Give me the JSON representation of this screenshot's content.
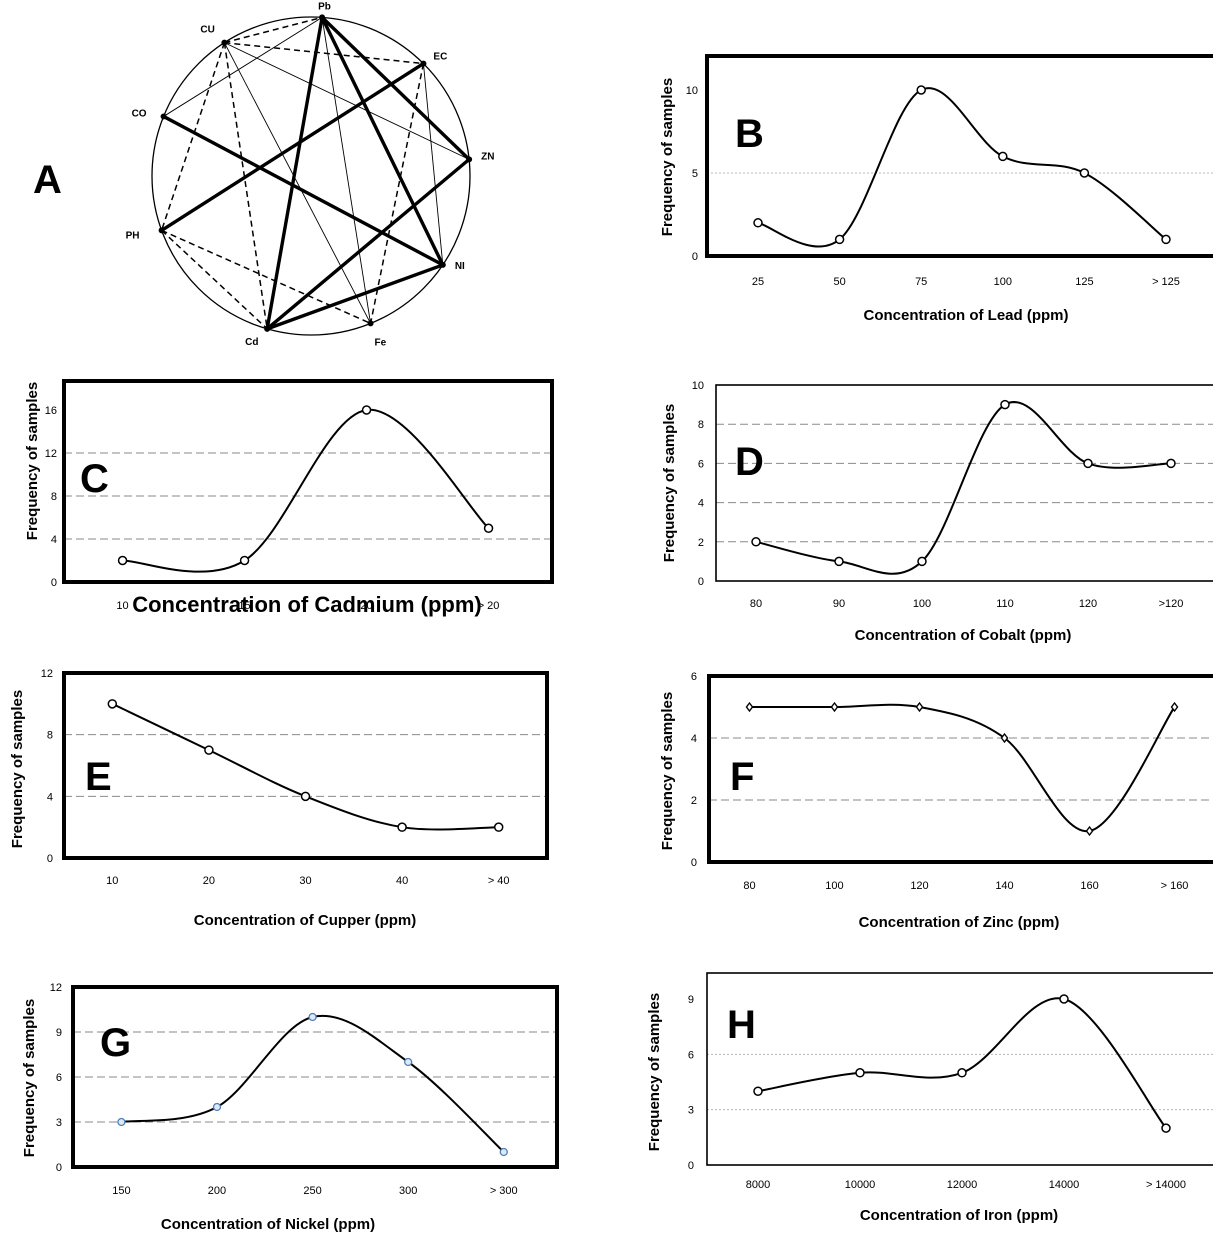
{
  "diagram": {
    "label": "A",
    "nodes": [
      "Pb",
      "EC",
      "ZN",
      "NI",
      "Fe",
      "Cd",
      "PH",
      "CO",
      "CU"
    ],
    "edges": [
      {
        "from": "CO",
        "to": "NI",
        "style": "thick"
      },
      {
        "from": "PH",
        "to": "EC",
        "style": "thick"
      },
      {
        "from": "Cd",
        "to": "ZN",
        "style": "thick"
      },
      {
        "from": "Cd",
        "to": "Pb",
        "style": "thick"
      },
      {
        "from": "Pb",
        "to": "NI",
        "style": "thick"
      },
      {
        "from": "Pb",
        "to": "ZN",
        "style": "thick"
      },
      {
        "from": "Cd",
        "to": "NI",
        "style": "thick"
      },
      {
        "from": "CU",
        "to": "Pb",
        "style": "dashed"
      },
      {
        "from": "CU",
        "to": "EC",
        "style": "dashed"
      },
      {
        "from": "CU",
        "to": "PH",
        "style": "dashed"
      },
      {
        "from": "CU",
        "to": "Cd",
        "style": "dashed"
      },
      {
        "from": "PH",
        "to": "Cd",
        "style": "dashed"
      },
      {
        "from": "PH",
        "to": "Fe",
        "style": "dashed"
      },
      {
        "from": "EC",
        "to": "Fe",
        "style": "dashed"
      },
      {
        "from": "CU",
        "to": "ZN",
        "style": "thin"
      },
      {
        "from": "CU",
        "to": "Fe",
        "style": "thin"
      },
      {
        "from": "CO",
        "to": "Pb",
        "style": "thin"
      },
      {
        "from": "EC",
        "to": "NI",
        "style": "thin"
      },
      {
        "from": "Pb",
        "to": "Fe",
        "style": "thin"
      }
    ]
  },
  "chart_data": [
    {
      "id": "B",
      "label": "B",
      "type": "line",
      "categories": [
        "25",
        "50",
        "75",
        "100",
        "125",
        "> 125"
      ],
      "values": [
        2,
        1,
        10,
        6,
        5,
        1
      ],
      "xlabel": "Concentration of Lead (ppm)",
      "ylabel": "Frequency of samples",
      "ylim": [
        0,
        10
      ],
      "yticks": [
        "0",
        "5",
        "10"
      ],
      "grid": "dotted",
      "marker": "circle"
    },
    {
      "id": "C",
      "label": "C",
      "type": "line",
      "categories": [
        "10",
        "15",
        "20",
        "> 20"
      ],
      "values": [
        2,
        2,
        16,
        5
      ],
      "xlabel": "Concentration of Cadmium  (ppm)",
      "ylabel": "Frequency of samples",
      "ylim": [
        0,
        16
      ],
      "yticks": [
        "0",
        "4",
        "8",
        "12",
        "16"
      ],
      "grid": "dashed",
      "marker": "circle"
    },
    {
      "id": "D",
      "label": "D",
      "type": "line",
      "categories": [
        "80",
        "90",
        "100",
        "110",
        "120",
        ">120"
      ],
      "values": [
        2,
        1,
        1,
        9,
        6,
        6
      ],
      "xlabel": "Concentration of Cobalt (ppm)",
      "ylabel": "Frequency of samples",
      "ylim": [
        0,
        10
      ],
      "yticks": [
        "0",
        "2",
        "4",
        "6",
        "8",
        "10"
      ],
      "grid": "dashed",
      "marker": "circle"
    },
    {
      "id": "E",
      "label": "E",
      "type": "line",
      "categories": [
        "10",
        "20",
        "30",
        "40",
        "> 40"
      ],
      "values": [
        10,
        7,
        4,
        2,
        2
      ],
      "xlabel": "Concentration of Cupper  (ppm)",
      "ylabel": "Frequency of samples",
      "ylim": [
        0,
        12
      ],
      "yticks": [
        "0",
        "4",
        "8",
        "12"
      ],
      "grid": "dashed",
      "marker": "circle"
    },
    {
      "id": "F",
      "label": "F",
      "type": "line",
      "categories": [
        "80",
        "100",
        "120",
        "140",
        "160",
        "> 160"
      ],
      "values": [
        5,
        5,
        5,
        4,
        1,
        5
      ],
      "xlabel": "Concentration of Zinc (ppm)",
      "ylabel": "Frequency of samples",
      "ylim": [
        0,
        6
      ],
      "yticks": [
        "0",
        "2",
        "4",
        "6"
      ],
      "grid": "dashed",
      "marker": "diamond"
    },
    {
      "id": "G",
      "label": "G",
      "type": "line",
      "categories": [
        "150",
        "200",
        "250",
        "300",
        "> 300"
      ],
      "values": [
        3,
        4,
        10,
        7,
        1
      ],
      "xlabel": "Concentration of Nickel (ppm)",
      "ylabel": "Frequency of samples",
      "ylim": [
        0,
        12
      ],
      "yticks": [
        "0",
        "3",
        "6",
        "9",
        "12"
      ],
      "grid": "dashed",
      "marker": "circle-blue"
    },
    {
      "id": "H",
      "label": "H",
      "type": "line",
      "categories": [
        "8000",
        "10000",
        "12000",
        "14000",
        "> 14000"
      ],
      "values": [
        4,
        5,
        5,
        9,
        2
      ],
      "xlabel": "Concentration of Iron (ppm)",
      "ylabel": "Frequency of samples",
      "ylim": [
        0,
        9
      ],
      "yticks": [
        "0",
        "3",
        "6",
        "9"
      ],
      "grid": "dotted",
      "marker": "circle"
    }
  ]
}
